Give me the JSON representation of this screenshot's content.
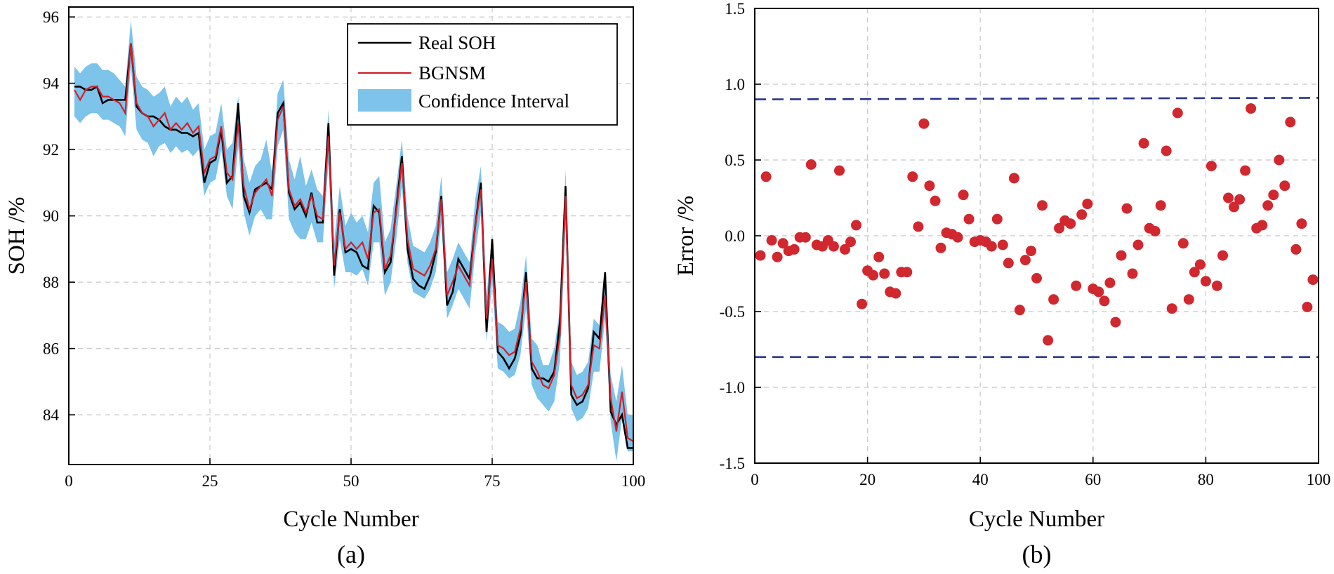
{
  "chart_data": [
    {
      "type": "line",
      "panel_label": "(a)",
      "xlabel": "Cycle Number",
      "ylabel": "SOH /%",
      "xlim": [
        0,
        100
      ],
      "ylim": [
        82.5,
        96.3
      ],
      "xticks": [
        0,
        25,
        50,
        75,
        100
      ],
      "yticks": [
        84,
        86,
        88,
        90,
        92,
        94,
        96
      ],
      "grid": true,
      "legend_position": "top-right",
      "legend": [
        "Real SOH",
        "BGNSM",
        "Confidence Interval"
      ],
      "x": [
        1,
        2,
        3,
        4,
        5,
        6,
        7,
        8,
        9,
        10,
        11,
        12,
        13,
        14,
        15,
        16,
        17,
        18,
        19,
        20,
        21,
        22,
        23,
        24,
        25,
        26,
        27,
        28,
        29,
        30,
        31,
        32,
        33,
        34,
        35,
        36,
        37,
        38,
        39,
        40,
        41,
        42,
        43,
        44,
        45,
        46,
        47,
        48,
        49,
        50,
        51,
        52,
        53,
        54,
        55,
        56,
        57,
        58,
        59,
        60,
        61,
        62,
        63,
        64,
        65,
        66,
        67,
        68,
        69,
        70,
        71,
        72,
        73,
        74,
        75,
        76,
        77,
        78,
        79,
        80,
        81,
        82,
        83,
        84,
        85,
        86,
        87,
        88,
        89,
        90,
        91,
        92,
        93,
        94,
        95,
        96,
        97,
        98,
        99,
        100
      ],
      "series": [
        {
          "name": "Real SOH",
          "color": "#000000",
          "values": [
            93.9,
            93.9,
            93.8,
            93.8,
            93.9,
            93.4,
            93.5,
            93.5,
            93.5,
            93.5,
            95.2,
            93.3,
            93.1,
            93.0,
            93.0,
            92.9,
            92.7,
            92.6,
            92.6,
            92.5,
            92.5,
            92.4,
            92.5,
            91.0,
            91.6,
            91.7,
            92.6,
            91.0,
            91.2,
            93.4,
            90.6,
            90.1,
            90.8,
            90.9,
            91.0,
            90.8,
            93.1,
            93.4,
            90.7,
            90.2,
            90.4,
            90.0,
            90.7,
            89.8,
            89.8,
            92.8,
            88.2,
            90.2,
            88.9,
            89.0,
            88.9,
            88.5,
            88.4,
            90.3,
            90.1,
            88.3,
            88.6,
            90.2,
            91.8,
            89.0,
            88.1,
            87.9,
            87.8,
            88.2,
            88.9,
            90.6,
            87.3,
            87.7,
            88.7,
            88.4,
            88.1,
            89.7,
            91.0,
            86.5,
            89.3,
            85.9,
            85.7,
            85.4,
            85.7,
            86.4,
            88.3,
            85.4,
            85.1,
            85.1,
            85.0,
            85.3,
            86.8,
            90.9,
            84.6,
            84.3,
            84.4,
            84.8,
            86.5,
            86.3,
            88.3,
            84.1,
            83.7,
            84.0,
            83.0,
            83.0
          ]
        },
        {
          "name": "BGNSM",
          "color": "#d0202a",
          "values": [
            93.8,
            93.5,
            93.8,
            93.9,
            93.9,
            93.6,
            93.6,
            93.5,
            93.4,
            93.1,
            95.2,
            93.4,
            93.1,
            93.0,
            92.7,
            92.9,
            93.1,
            92.6,
            92.8,
            92.6,
            92.8,
            92.5,
            92.7,
            91.3,
            91.7,
            91.8,
            92.7,
            91.3,
            91.1,
            92.8,
            90.9,
            90.2,
            90.7,
            90.9,
            91.1,
            90.6,
            92.9,
            93.3,
            90.8,
            90.3,
            90.5,
            90.1,
            90.6,
            90.0,
            89.9,
            92.4,
            88.5,
            90.1,
            89.0,
            89.2,
            89.0,
            89.2,
            88.7,
            90.1,
            90.2,
            88.4,
            88.8,
            90.1,
            91.6,
            89.3,
            88.4,
            88.3,
            88.2,
            88.5,
            89.0,
            90.5,
            87.6,
            88.0,
            88.5,
            88.2,
            87.9,
            89.7,
            90.8,
            86.9,
            88.7,
            86.1,
            86.0,
            85.8,
            85.9,
            86.6,
            88.0,
            85.6,
            85.3,
            84.9,
            84.8,
            85.2,
            86.4,
            90.6,
            84.9,
            84.5,
            84.6,
            84.9,
            86.1,
            86.0,
            87.6,
            84.5,
            83.5,
            84.7,
            83.3,
            83.2
          ]
        }
      ],
      "confidence_interval": {
        "name": "Confidence Interval",
        "color": "#7dc3ea",
        "lower": [
          93.0,
          92.8,
          93.0,
          93.1,
          93.1,
          92.9,
          92.9,
          92.8,
          92.7,
          92.4,
          94.5,
          92.6,
          92.3,
          92.2,
          91.8,
          92.1,
          92.2,
          91.9,
          92.1,
          91.9,
          92.0,
          91.8,
          92.0,
          90.6,
          91.0,
          91.1,
          92.0,
          90.6,
          90.2,
          92.1,
          90.1,
          89.4,
          90.0,
          90.2,
          89.9,
          89.9,
          92.1,
          92.6,
          89.9,
          89.5,
          89.3,
          89.3,
          89.8,
          89.2,
          89.2,
          91.6,
          87.8,
          89.3,
          88.3,
          88.3,
          88.2,
          88.4,
          87.9,
          89.2,
          89.2,
          87.6,
          88.0,
          89.3,
          90.9,
          88.6,
          87.7,
          87.6,
          87.5,
          87.8,
          88.3,
          89.8,
          86.9,
          87.3,
          87.8,
          87.5,
          87.2,
          88.9,
          90.1,
          86.2,
          88.0,
          85.4,
          85.3,
          85.1,
          85.2,
          85.8,
          87.2,
          84.9,
          84.5,
          84.3,
          84.1,
          84.4,
          85.6,
          89.8,
          84.2,
          83.8,
          83.9,
          84.2,
          85.3,
          85.3,
          86.9,
          83.8,
          82.6,
          83.9,
          82.9,
          82.9
        ],
        "upper": [
          94.5,
          94.3,
          94.5,
          94.6,
          94.6,
          94.4,
          94.4,
          94.3,
          94.1,
          93.9,
          95.9,
          94.2,
          93.9,
          93.8,
          93.6,
          93.7,
          93.9,
          93.3,
          93.6,
          93.4,
          93.6,
          93.2,
          93.4,
          92.0,
          92.4,
          92.5,
          93.4,
          92.0,
          92.2,
          93.6,
          91.7,
          91.0,
          91.5,
          91.7,
          92.3,
          91.3,
          93.7,
          94.1,
          91.7,
          91.1,
          91.8,
          90.9,
          91.4,
          90.8,
          90.6,
          93.2,
          89.2,
          90.9,
          89.7,
          90.1,
          89.8,
          90.0,
          89.5,
          91.0,
          91.2,
          89.2,
          89.6,
          90.9,
          92.3,
          90.0,
          89.1,
          89.0,
          88.9,
          89.2,
          89.7,
          91.2,
          88.3,
          88.7,
          89.2,
          88.9,
          88.6,
          90.5,
          91.5,
          87.6,
          89.4,
          86.8,
          86.7,
          86.5,
          86.6,
          87.4,
          88.8,
          86.3,
          86.1,
          85.5,
          85.5,
          86.0,
          87.2,
          91.4,
          85.6,
          85.2,
          85.3,
          85.6,
          86.9,
          86.7,
          88.3,
          85.2,
          84.4,
          85.5,
          84.0,
          84.0
        ]
      }
    },
    {
      "type": "scatter",
      "panel_label": "(b)",
      "xlabel": "Cycle Number",
      "ylabel": "Error /%",
      "xlim": [
        0,
        100
      ],
      "ylim": [
        -1.5,
        1.5
      ],
      "xticks": [
        0,
        20,
        40,
        60,
        80,
        100
      ],
      "yticks": [
        -1.5,
        -1.0,
        -0.5,
        0.0,
        0.5,
        1.0,
        1.5
      ],
      "ytick_labels": [
        "-1.5",
        "-1.0",
        "-0.5",
        "0.0",
        "0.5",
        "1.0",
        "1.5"
      ],
      "grid": true,
      "marker_color": "#d0282e",
      "bounds_color": "#28348f",
      "upper_bound": [
        0.9,
        0.91
      ],
      "lower_bound": [
        -0.8,
        -0.8
      ],
      "x": [
        1,
        2,
        3,
        4,
        5,
        6,
        7,
        8,
        9,
        10,
        11,
        12,
        13,
        14,
        15,
        16,
        17,
        18,
        19,
        20,
        21,
        22,
        23,
        24,
        25,
        26,
        27,
        28,
        29,
        30,
        31,
        32,
        33,
        34,
        35,
        36,
        37,
        38,
        39,
        40,
        41,
        42,
        43,
        44,
        45,
        46,
        47,
        48,
        49,
        50,
        51,
        52,
        53,
        54,
        55,
        56,
        57,
        58,
        59,
        60,
        61,
        62,
        63,
        64,
        65,
        66,
        67,
        68,
        69,
        70,
        71,
        72,
        73,
        74,
        75,
        76,
        77,
        78,
        79,
        80,
        81,
        82,
        83,
        84,
        85,
        86,
        87,
        88,
        89,
        90,
        91,
        92,
        93,
        94,
        95,
        96,
        97,
        98,
        99
      ],
      "values": [
        -0.13,
        0.39,
        -0.03,
        -0.14,
        -0.05,
        -0.1,
        -0.09,
        -0.01,
        -0.01,
        0.47,
        -0.06,
        -0.07,
        -0.03,
        -0.07,
        0.43,
        -0.09,
        -0.04,
        0.07,
        -0.45,
        -0.23,
        -0.26,
        -0.14,
        -0.25,
        -0.37,
        -0.38,
        -0.24,
        -0.24,
        0.39,
        0.06,
        0.74,
        0.33,
        0.23,
        -0.08,
        0.02,
        0.01,
        -0.01,
        0.27,
        0.11,
        -0.04,
        -0.03,
        -0.04,
        -0.07,
        0.11,
        -0.06,
        -0.18,
        0.38,
        -0.49,
        -0.16,
        -0.1,
        -0.28,
        0.2,
        -0.69,
        -0.42,
        0.05,
        0.1,
        0.08,
        -0.33,
        0.14,
        0.21,
        -0.35,
        -0.37,
        -0.43,
        -0.31,
        -0.57,
        -0.13,
        0.18,
        -0.25,
        -0.06,
        0.61,
        0.05,
        0.03,
        0.2,
        0.56,
        -0.48,
        0.81,
        -0.05,
        -0.42,
        -0.24,
        -0.19,
        -0.3,
        0.46,
        -0.33,
        -0.13,
        0.25,
        0.19,
        0.24,
        0.43,
        0.84,
        0.05,
        0.07,
        0.2,
        0.27,
        0.5,
        0.33,
        0.75,
        -0.09,
        0.08,
        -0.47,
        -0.29
      ]
    }
  ]
}
